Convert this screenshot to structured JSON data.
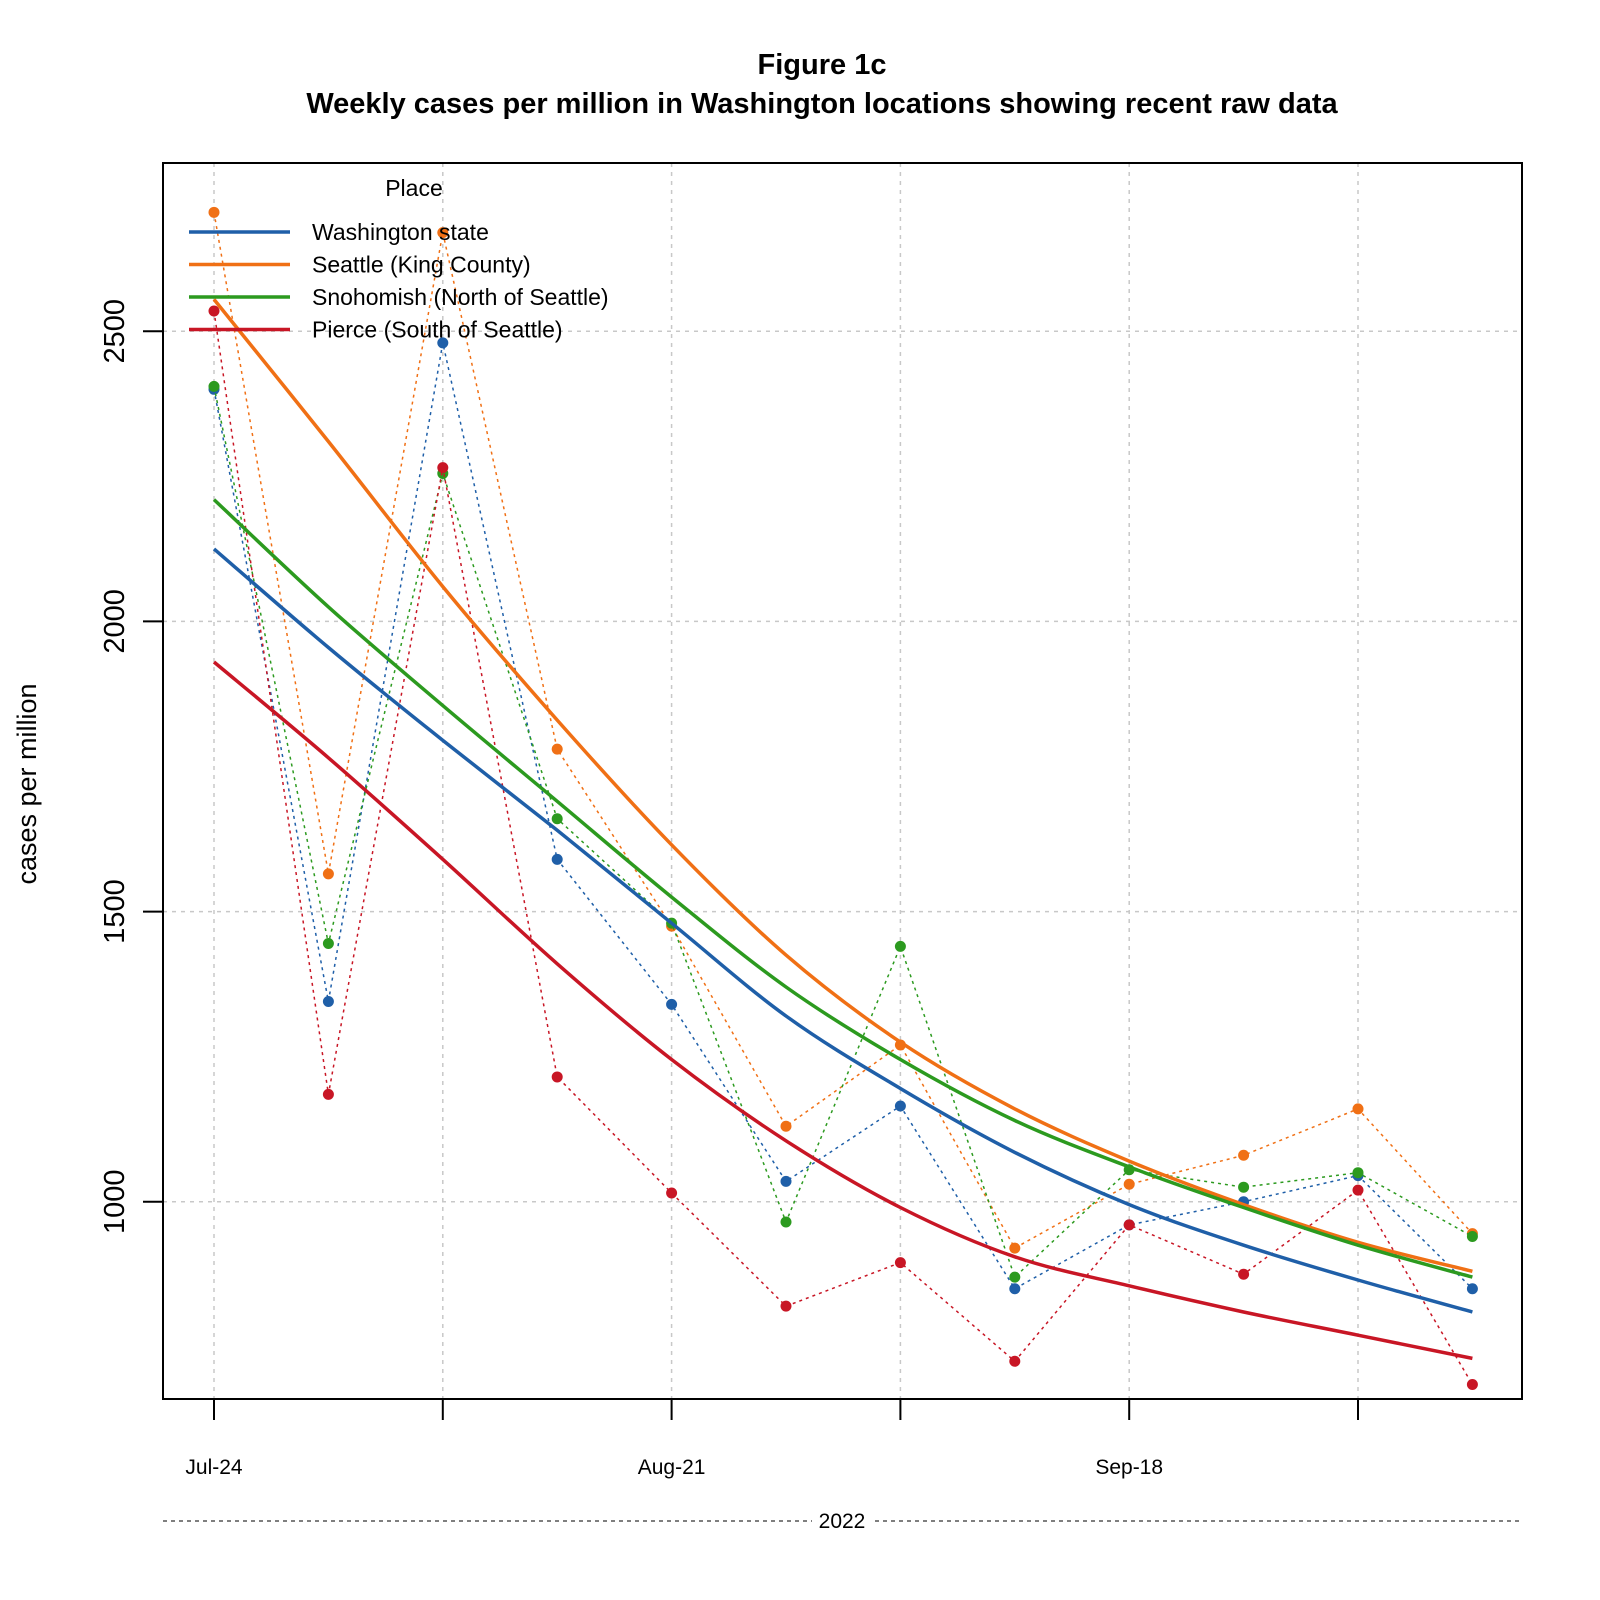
{
  "chart_data": {
    "type": "line",
    "title": "Figure 1c",
    "subtitle": "Weekly cases per million in Washington locations showing recent raw data",
    "ylabel": "cases per million",
    "xlabel": "2022",
    "ylim": [
      660,
      2790
    ],
    "y_ticks": [
      1000,
      1500,
      2000,
      2500
    ],
    "x_ticks_labeled": [
      "Jul-24",
      "Aug-21",
      "Sep-18"
    ],
    "x": [
      "Jul-24",
      "Jul-31",
      "Aug-07",
      "Aug-14",
      "Aug-21",
      "Aug-28",
      "Sep-04",
      "Sep-11",
      "Sep-18",
      "Sep-25",
      "Oct-02",
      "Oct-09"
    ],
    "grid": true,
    "legend": {
      "title": "Place",
      "position": "top-left"
    },
    "series": [
      {
        "name": "Washington state",
        "color": "#1f5fa8",
        "raw": [
          2400,
          1345,
          2480,
          1590,
          1340,
          1035,
          1165,
          850,
          960,
          1000,
          1045,
          850
        ],
        "trend": [
          2125,
          1955,
          1795,
          1640,
          1480,
          1320,
          1195,
          1085,
          995,
          925,
          865,
          810
        ]
      },
      {
        "name": "Seattle (King County)",
        "color": "#f07015",
        "raw": [
          2705,
          1565,
          2670,
          1780,
          1475,
          1130,
          1270,
          920,
          1030,
          1080,
          1160,
          945
        ],
        "trend": [
          2555,
          2310,
          2060,
          1830,
          1615,
          1425,
          1275,
          1160,
          1070,
          995,
          930,
          880
        ]
      },
      {
        "name": "Snohomish (North of Seattle)",
        "color": "#2c9a1f",
        "raw": [
          2405,
          1445,
          2255,
          1660,
          1480,
          965,
          1440,
          870,
          1055,
          1025,
          1050,
          940
        ],
        "trend": [
          2210,
          2025,
          1855,
          1690,
          1525,
          1370,
          1245,
          1140,
          1060,
          990,
          925,
          870
        ]
      },
      {
        "name": "Pierce (South of Seattle)",
        "color": "#c81625",
        "raw": [
          2535,
          1185,
          2265,
          1215,
          1015,
          820,
          895,
          725,
          960,
          875,
          1020,
          685
        ],
        "trend": [
          1930,
          1765,
          1590,
          1410,
          1245,
          1105,
          990,
          905,
          855,
          810,
          770,
          730
        ]
      }
    ]
  }
}
